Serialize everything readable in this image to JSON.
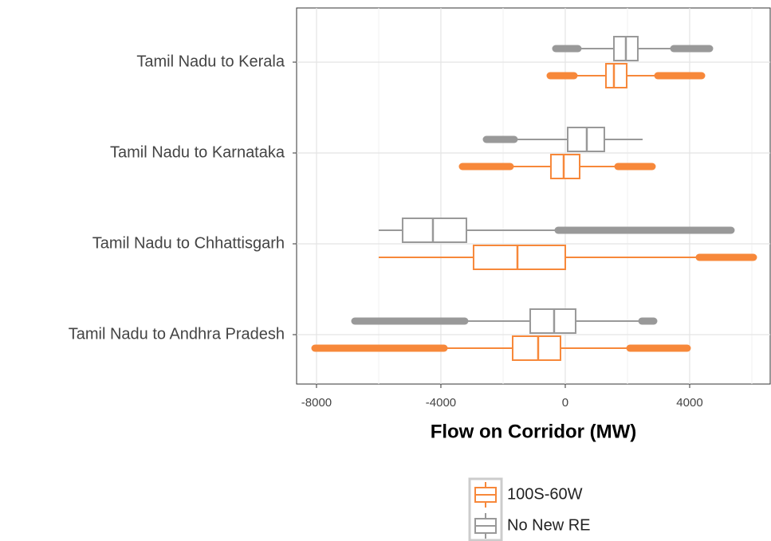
{
  "chart_data": {
    "type": "boxplot",
    "orientation": "horizontal",
    "x_label": "Flow on Corridor (MW)",
    "categories": [
      "Tamil Nadu to Kerala",
      "Tamil Nadu to Karnataka",
      "Tamil Nadu to Chhattisgarh",
      "Tamil Nadu to Andhra Pradesh"
    ],
    "xlim": [
      -8640,
      6590
    ],
    "xticks": [
      -8000,
      -4000,
      0,
      4000
    ],
    "xminor": [
      -6000,
      -2000,
      2000,
      6000
    ],
    "grid": true,
    "series": [
      {
        "name": "100S-60W",
        "color": "#f7883a",
        "outlier_low": [
          -487,
          -3308,
          null,
          -8051
        ],
        "whisker_low": [
          282,
          -1769,
          -6000,
          -3897
        ],
        "q1": [
          1308,
          -462,
          -2949,
          -1692
        ],
        "median": [
          1564,
          -51,
          -1538,
          -872
        ],
        "q3": [
          1974,
          462,
          0,
          -154
        ],
        "whisker_high": [
          2974,
          1692,
          4308,
          2077
        ],
        "outlier_high": [
          4385,
          2795,
          6051,
          3923
        ]
      },
      {
        "name": "No New RE",
        "color": "#999999",
        "outlier_low": [
          -308,
          -2538,
          null,
          -6769
        ],
        "whisker_low": [
          410,
          -1641,
          -6000,
          -3231
        ],
        "q1": [
          1564,
          77,
          -5231,
          -1128
        ],
        "median": [
          1949,
          692,
          -4256,
          -359
        ],
        "q3": [
          2333,
          1256,
          -3179,
          333
        ],
        "whisker_high": [
          3487,
          2487,
          -231,
          2462
        ],
        "outlier_high": [
          4641,
          null,
          5333,
          2846
        ]
      }
    ]
  }
}
